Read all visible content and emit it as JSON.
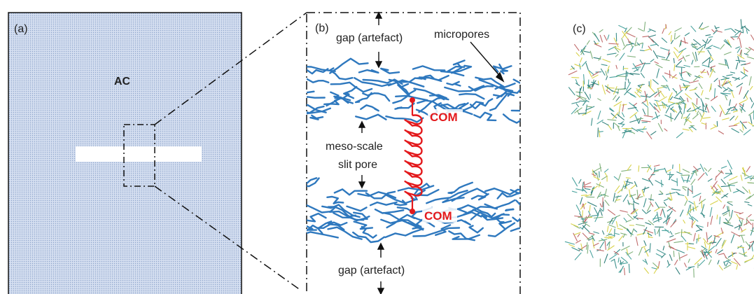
{
  "panel_a": {
    "label": "(a)",
    "material_label": "AC",
    "fill_color": "#c9d6ec"
  },
  "panel_b": {
    "label": "(b)",
    "gap_top_label": "gap (artefact)",
    "gap_bottom_label": "gap (artefact)",
    "micropores_label": "micropores",
    "meso_label_line1": "meso-scale",
    "meso_label_line2": "slit pore",
    "com_top_label": "COM",
    "com_bottom_label": "COM",
    "fiber_color": "#2e78be",
    "spring_color": "#e3191c"
  },
  "panel_c": {
    "label": "(c)"
  }
}
